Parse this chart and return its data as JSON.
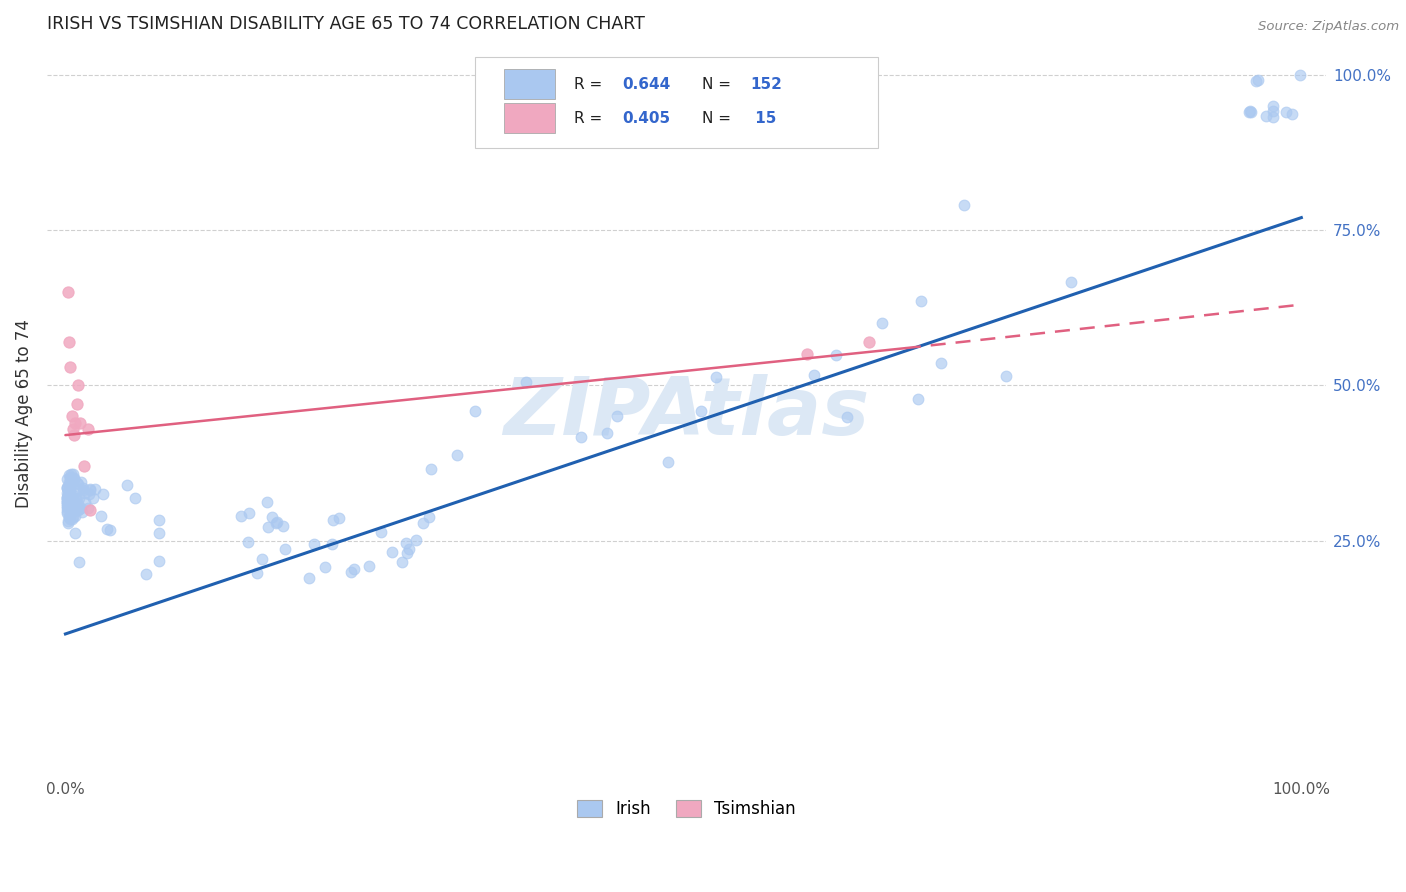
{
  "title": "IRISH VS TSIMSHIAN DISABILITY AGE 65 TO 74 CORRELATION CHART",
  "source": "Source: ZipAtlas.com",
  "ylabel": "Disability Age 65 to 74",
  "irish_R": 0.644,
  "irish_N": 152,
  "tsimshian_R": 0.405,
  "tsimshian_N": 15,
  "irish_color": "#aac8f0",
  "tsimshian_color": "#f0a8c0",
  "irish_line_color": "#2060b0",
  "tsimshian_line_color": "#e06080",
  "watermark_color": "#dce8f5",
  "legend_label_irish": "Irish",
  "legend_label_tsimshian": "Tsimshian",
  "xlim": [
    0.0,
    1.0
  ],
  "ylim": [
    0.0,
    1.0
  ],
  "grid_color": "#d0d0d0",
  "tick_color": "#555555",
  "right_tick_color": "#4472c4",
  "title_color": "#222222",
  "source_color": "#888888",
  "ylabel_color": "#333333"
}
